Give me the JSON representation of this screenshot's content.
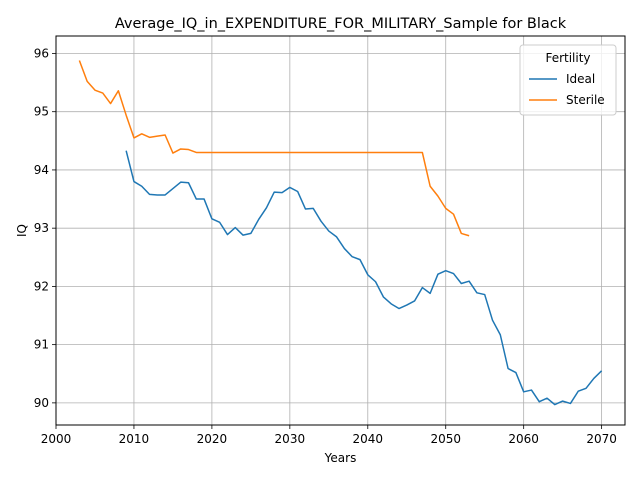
{
  "chart_data": {
    "type": "line",
    "title": "Average_IQ_in_EXPENDITURE_FOR_MILITARY_Sample for Black",
    "xlabel": "Years",
    "ylabel": "IQ",
    "xlim": [
      2000,
      2073
    ],
    "ylim": [
      89.62,
      96.3
    ],
    "xticks": [
      2000,
      2010,
      2020,
      2030,
      2040,
      2050,
      2060,
      2070
    ],
    "yticks": [
      90,
      91,
      92,
      93,
      94,
      95,
      96
    ],
    "grid": true,
    "legend": {
      "title": "Fertility",
      "position": "top-right"
    },
    "series": [
      {
        "name": "Ideal",
        "color": "#1f77b4",
        "x": [
          2009,
          2010,
          2011,
          2012,
          2013,
          2014,
          2015,
          2016,
          2017,
          2018,
          2019,
          2020,
          2021,
          2022,
          2023,
          2024,
          2025,
          2026,
          2027,
          2028,
          2029,
          2030,
          2031,
          2032,
          2033,
          2034,
          2035,
          2036,
          2037,
          2038,
          2039,
          2040,
          2041,
          2042,
          2043,
          2044,
          2045,
          2046,
          2047,
          2048,
          2049,
          2050,
          2051,
          2052,
          2053,
          2054,
          2055,
          2056,
          2057,
          2058,
          2059,
          2060,
          2061,
          2062,
          2063,
          2064,
          2065,
          2066,
          2067,
          2068,
          2069,
          2070
        ],
        "y": [
          94.33,
          93.8,
          93.72,
          93.58,
          93.57,
          93.57,
          93.68,
          93.79,
          93.78,
          93.5,
          93.5,
          93.16,
          93.1,
          92.89,
          93.01,
          92.88,
          92.91,
          93.15,
          93.35,
          93.62,
          93.61,
          93.7,
          93.63,
          93.33,
          93.34,
          93.12,
          92.95,
          92.85,
          92.65,
          92.51,
          92.46,
          92.2,
          92.08,
          91.82,
          91.7,
          91.62,
          91.68,
          91.75,
          91.98,
          91.88,
          92.21,
          92.27,
          92.22,
          92.05,
          92.09,
          91.89,
          91.86,
          91.42,
          91.17,
          90.59,
          90.52,
          90.19,
          90.22,
          90.02,
          90.08,
          89.97,
          90.03,
          89.99,
          90.2,
          90.25,
          90.42,
          90.55
        ]
      },
      {
        "name": "Sterile",
        "color": "#ff7f0e",
        "x": [
          2003,
          2004,
          2005,
          2006,
          2007,
          2008,
          2009,
          2010,
          2011,
          2012,
          2013,
          2014,
          2015,
          2016,
          2017,
          2018,
          2019,
          2020,
          2021,
          2022,
          2023,
          2024,
          2025,
          2026,
          2027,
          2028,
          2029,
          2030,
          2031,
          2032,
          2033,
          2034,
          2035,
          2036,
          2037,
          2038,
          2039,
          2040,
          2041,
          2042,
          2043,
          2044,
          2045,
          2046,
          2047,
          2048,
          2049,
          2050,
          2051,
          2052,
          2053
        ],
        "y": [
          95.88,
          95.52,
          95.37,
          95.32,
          95.14,
          95.36,
          94.94,
          94.55,
          94.62,
          94.56,
          94.58,
          94.6,
          94.29,
          94.36,
          94.35,
          94.3,
          94.3,
          94.3,
          94.3,
          94.3,
          94.3,
          94.3,
          94.3,
          94.3,
          94.3,
          94.3,
          94.3,
          94.3,
          94.3,
          94.3,
          94.3,
          94.3,
          94.3,
          94.3,
          94.3,
          94.3,
          94.3,
          94.3,
          94.3,
          94.3,
          94.3,
          94.3,
          94.3,
          94.3,
          94.3,
          93.72,
          93.55,
          93.34,
          93.24,
          92.91,
          92.87
        ]
      }
    ]
  }
}
